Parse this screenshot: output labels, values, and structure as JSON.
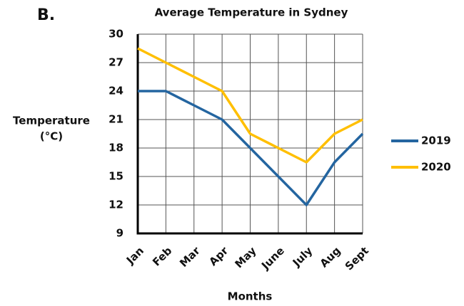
{
  "chart_data": {
    "type": "line",
    "panel_label": "B.",
    "title": "Average Temperature in Sydney",
    "y_label": [
      "Temperature",
      "(°C)"
    ],
    "x_label": "Months",
    "categories": [
      "Jan",
      "Feb",
      "Mar",
      "Apr",
      "May",
      "June",
      "July",
      "Aug",
      "Sept"
    ],
    "series": [
      {
        "name": "2019",
        "color": "#2465a0",
        "values": [
          24,
          24,
          22.5,
          21,
          18,
          15,
          12,
          16.5,
          19.5
        ]
      },
      {
        "name": "2020",
        "color": "#ffbf00",
        "values": [
          28.5,
          27,
          25.5,
          24,
          19.5,
          18,
          16.5,
          19.5,
          21
        ]
      }
    ],
    "ylim": [
      9,
      30
    ],
    "yticks": [
      9,
      12,
      15,
      18,
      21,
      24,
      27,
      30
    ],
    "grid": true,
    "legend": "right"
  }
}
